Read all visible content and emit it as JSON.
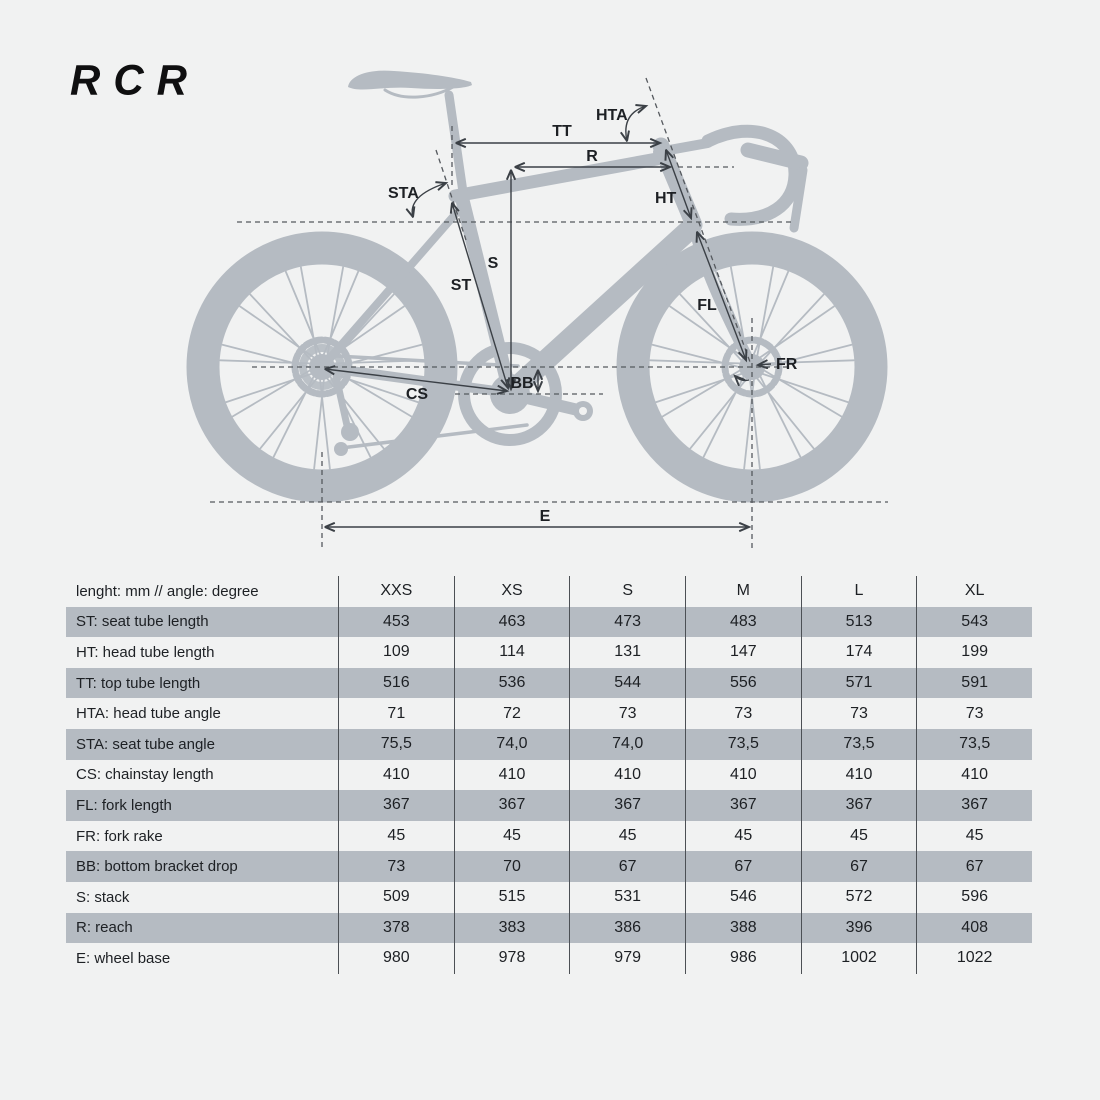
{
  "logo": "RCR",
  "colors": {
    "background": "#f1f2f2",
    "silhouette": "#b5bbc2",
    "row_shade": "#b5bbc2",
    "annotation_line": "#3b4046",
    "dashed_line": "#55595e",
    "text": "#1d2024"
  },
  "diagram": {
    "labels": {
      "hta": "HTA",
      "tt": "TT",
      "r": "R",
      "sta": "STA",
      "ht": "HT",
      "s": "S",
      "st": "ST",
      "cs": "CS",
      "bb": "BB",
      "fl": "FL",
      "fr": "FR",
      "e": "E"
    }
  },
  "table": {
    "header_label": "lenght: mm // angle: degree",
    "sizes": [
      "XXS",
      "XS",
      "S",
      "M",
      "L",
      "XL"
    ],
    "rows": [
      {
        "label": "ST: seat tube length",
        "values": [
          "453",
          "463",
          "473",
          "483",
          "513",
          "543"
        ]
      },
      {
        "label": "HT: head tube length",
        "values": [
          "109",
          "114",
          "131",
          "147",
          "174",
          "199"
        ]
      },
      {
        "label": "TT: top tube length",
        "values": [
          "516",
          "536",
          "544",
          "556",
          "571",
          "591"
        ]
      },
      {
        "label": "HTA: head tube angle",
        "values": [
          "71",
          "72",
          "73",
          "73",
          "73",
          "73"
        ]
      },
      {
        "label": "STA: seat tube angle",
        "values": [
          "75,5",
          "74,0",
          "74,0",
          "73,5",
          "73,5",
          "73,5"
        ]
      },
      {
        "label": "CS: chainstay length",
        "values": [
          "410",
          "410",
          "410",
          "410",
          "410",
          "410"
        ]
      },
      {
        "label": "FL: fork length",
        "values": [
          "367",
          "367",
          "367",
          "367",
          "367",
          "367"
        ]
      },
      {
        "label": "FR: fork rake",
        "values": [
          "45",
          "45",
          "45",
          "45",
          "45",
          "45"
        ]
      },
      {
        "label": "BB: bottom bracket drop",
        "values": [
          "73",
          "70",
          "67",
          "67",
          "67",
          "67"
        ]
      },
      {
        "label": "S: stack",
        "values": [
          "509",
          "515",
          "531",
          "546",
          "572",
          "596"
        ]
      },
      {
        "label": "R: reach",
        "values": [
          "378",
          "383",
          "386",
          "388",
          "396",
          "408"
        ]
      },
      {
        "label": "E: wheel base",
        "values": [
          "980",
          "978",
          "979",
          "986",
          "1002",
          "1022"
        ]
      }
    ]
  }
}
